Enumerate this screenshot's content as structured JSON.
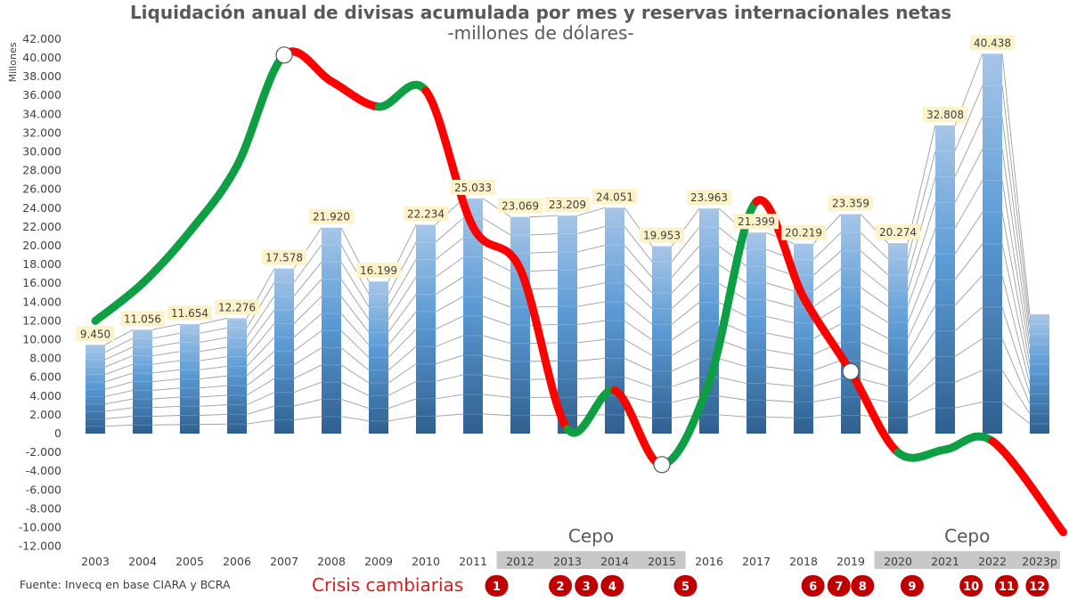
{
  "chart_data": {
    "type": "bar",
    "title": "Liquidación anual de divisas acumulada por mes y reservas internacionales netas",
    "subtitle": "-millones de dólares-",
    "ylabel": "Millones",
    "ylim": [
      -12000,
      42000
    ],
    "y_tick_step": 2000,
    "grid": false,
    "categories": [
      "2003",
      "2004",
      "2005",
      "2006",
      "2007",
      "2008",
      "2009",
      "2010",
      "2011",
      "2012",
      "2013",
      "2014",
      "2015",
      "2016",
      "2017",
      "2018",
      "2019",
      "2020",
      "2021",
      "2022",
      "2023p"
    ],
    "values": [
      9450,
      11056,
      11654,
      12276,
      17578,
      21920,
      16199,
      22234,
      25033,
      23069,
      23209,
      24051,
      19953,
      23963,
      21399,
      20219,
      23359,
      20274,
      32808,
      40438,
      12700
    ],
    "bar_labels": [
      "9.450",
      "11.056",
      "11.654",
      "12.276",
      "17.578",
      "21.920",
      "16.199",
      "22.234",
      "25.033",
      "23.069",
      "23.209",
      "24.051",
      "19.953",
      "23.963",
      "21.399",
      "20.219",
      "23.359",
      "20.274",
      "32.808",
      "40.438",
      ""
    ],
    "series": [
      {
        "type": "line",
        "x": [
          2003,
          2004,
          2005,
          2006,
          2007,
          2008,
          2009,
          2010,
          2011,
          2012,
          2013,
          2014,
          2015,
          2016,
          2017,
          2018,
          2019,
          2020,
          2021,
          2022,
          2023.5
        ],
        "values": [
          12000,
          16000,
          21500,
          28500,
          40300,
          37500,
          34800,
          36500,
          22000,
          17500,
          500,
          4600,
          -3300,
          5500,
          24700,
          14500,
          6600,
          -2000,
          -1700,
          -800,
          -10500
        ],
        "growth_color": "#0e9f45",
        "decline_color": "#ff0000"
      }
    ],
    "turning_points": [
      2007,
      2015,
      2019
    ],
    "cepo_periods": [
      {
        "label": "Cepo",
        "from": "2012",
        "to": "2015"
      },
      {
        "label": "Cepo",
        "from": "2020",
        "to": "2023p"
      }
    ],
    "crisis_markers": {
      "label": "Crisis cambiarias",
      "items": [
        {
          "n": "1",
          "x": 2011.5
        },
        {
          "n": "2",
          "x": 2012.85
        },
        {
          "n": "3",
          "x": 2013.4
        },
        {
          "n": "4",
          "x": 2013.95
        },
        {
          "n": "5",
          "x": 2015.5
        },
        {
          "n": "6",
          "x": 2018.2
        },
        {
          "n": "7",
          "x": 2018.75
        },
        {
          "n": "8",
          "x": 2019.25
        },
        {
          "n": "9",
          "x": 2020.3
        },
        {
          "n": "10",
          "x": 2021.55
        },
        {
          "n": "11",
          "x": 2022.3
        },
        {
          "n": "12",
          "x": 2022.95
        }
      ]
    },
    "source": "Fuente: Invecq en base CIARA y BCRA",
    "colors": {
      "bar_top": "#a7c6e8",
      "bar_mid": "#5b9bd5",
      "bar_bottom": "#2f5f8f",
      "month_line": "#9e9e9e",
      "label_bg": "#fdf2c8",
      "cepo_bg": "#c8c8c8",
      "crisis": "#c00000",
      "text": "#404040"
    }
  }
}
